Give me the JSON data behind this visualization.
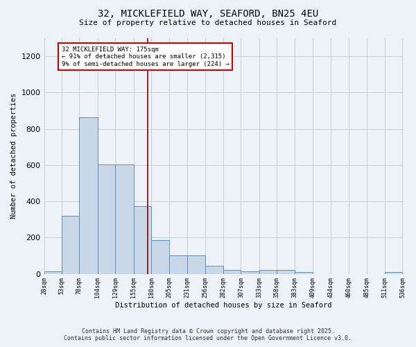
{
  "title_line1": "32, MICKLEFIELD WAY, SEAFORD, BN25 4EU",
  "title_line2": "Size of property relative to detached houses in Seaford",
  "xlabel": "Distribution of detached houses by size in Seaford",
  "ylabel": "Number of detached properties",
  "bin_edges": [
    28,
    53,
    78,
    104,
    129,
    155,
    180,
    205,
    231,
    256,
    282,
    307,
    333,
    358,
    383,
    409,
    434,
    460,
    485,
    511,
    536
  ],
  "bar_heights": [
    15,
    320,
    865,
    605,
    605,
    375,
    185,
    100,
    100,
    45,
    20,
    15,
    20,
    20,
    10,
    0,
    0,
    0,
    0,
    10
  ],
  "bar_color": "#c8d8e8",
  "bar_edge_color": "#5b8db8",
  "property_size": 175,
  "vline_color": "#8b0000",
  "annotation_line1": "32 MICKLEFIELD WAY: 175sqm",
  "annotation_line2": "← 91% of detached houses are smaller (2,315)",
  "annotation_line3": "9% of semi-detached houses are larger (224) →",
  "annotation_box_color": "#ffffff",
  "annotation_border_color": "#cc0000",
  "ylim": [
    0,
    1300
  ],
  "yticks": [
    0,
    200,
    400,
    600,
    800,
    1000,
    1200
  ],
  "grid_color": "#cccccc",
  "bg_color": "#edf2f8",
  "footer_line1": "Contains HM Land Registry data © Crown copyright and database right 2025.",
  "footer_line2": "Contains public sector information licensed under the Open Government Licence v3.0."
}
